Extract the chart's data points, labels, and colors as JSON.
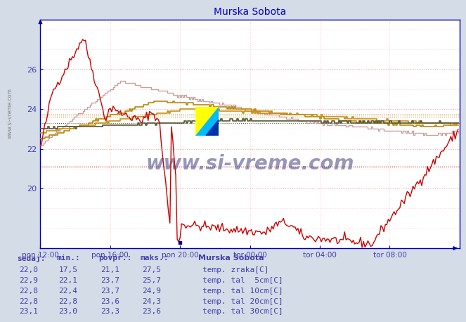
{
  "title": "Murska Sobota",
  "title_color": "#0000cc",
  "background_color": "#d4dce8",
  "plot_bg_color": "#ffffff",
  "grid_color_major": "#ff9999",
  "grid_color_minor": "#ffcccc",
  "xlabel_ticks": [
    "pon 12:00",
    "pon 16:00",
    "pon 20:00",
    "tor 00:00",
    "tor 04:00",
    "tor 08:00"
  ],
  "yticks": [
    20,
    22,
    24,
    26
  ],
  "ylim": [
    17.0,
    28.5
  ],
  "xlim": [
    0,
    288
  ],
  "tick_label_color": "#4040aa",
  "axis_color": "#0000aa",
  "series_colors": {
    "temp_zraka": "#cc0000",
    "temp_tal_5cm": "#c8a0a0",
    "temp_tal_10cm": "#b8860b",
    "temp_tal_20cm": "#c89010",
    "temp_tal_30cm": "#555533"
  },
  "avg_values": {
    "temp_zraka": 21.1,
    "temp_tal_5cm": 23.7,
    "temp_tal_10cm": 23.7,
    "temp_tal_20cm": 23.6,
    "temp_tal_30cm": 23.3
  },
  "table_headers": [
    "sedaj:",
    "min.:",
    "povpr.:",
    "maks.:"
  ],
  "table_legend_title": "Murska Sobota",
  "table_rows": [
    [
      "22,0",
      "17,5",
      "21,1",
      "27,5",
      "temp. zraka[C]"
    ],
    [
      "22,9",
      "22,1",
      "23,7",
      "25,7",
      "temp. tal  5cm[C]"
    ],
    [
      "22,8",
      "22,4",
      "23,7",
      "24,9",
      "temp. tal 10cm[C]"
    ],
    [
      "22,8",
      "22,8",
      "23,6",
      "24,3",
      "temp. tal 20cm[C]"
    ],
    [
      "23,1",
      "23,0",
      "23,3",
      "23,6",
      "temp. tal 30cm[C]"
    ]
  ],
  "watermark": "www.si-vreme.com",
  "n_points": 288
}
